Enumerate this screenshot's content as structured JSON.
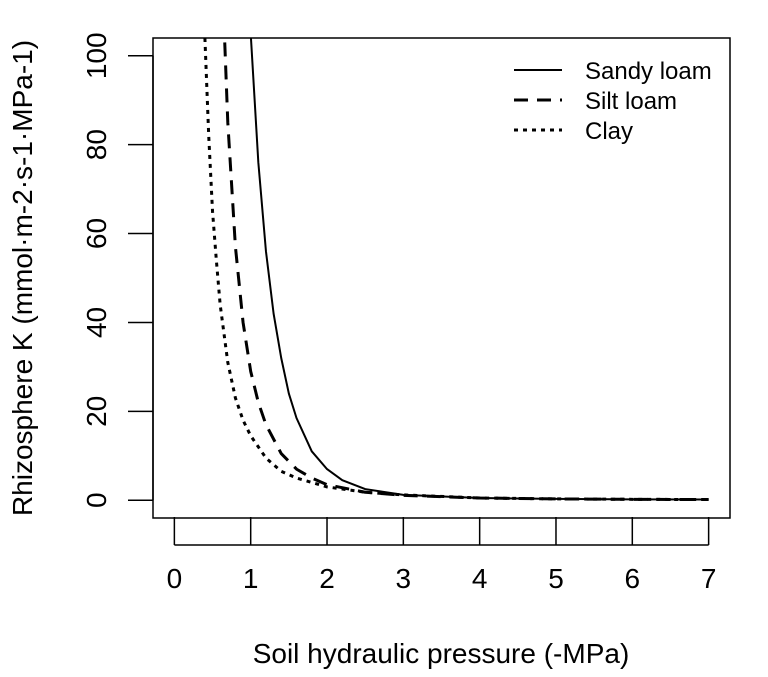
{
  "chart_data": {
    "type": "line",
    "title": "",
    "xlabel": "Soil hydraulic pressure (-MPa)",
    "ylabel": "Rhizosphere K (mmol·m-2·s-1·MPa-1)",
    "xlim": [
      -0.28,
      7.28
    ],
    "ylim": [
      -4,
      104
    ],
    "xticks": [
      0,
      1,
      2,
      3,
      4,
      5,
      6,
      7
    ],
    "yticks": [
      0,
      20,
      40,
      60,
      80,
      100
    ],
    "grid": false,
    "legend_position": "top-right",
    "series": [
      {
        "name": "Sandy loam",
        "line_style": "solid",
        "color": "#000000",
        "x": [
          1.0,
          1.1,
          1.2,
          1.3,
          1.4,
          1.5,
          1.6,
          1.8,
          2.0,
          2.2,
          2.5,
          3.0,
          4.0,
          5.0,
          6.0,
          7.0
        ],
        "y": [
          105,
          76,
          56,
          42,
          32,
          24,
          18.5,
          11,
          7,
          4.5,
          2.5,
          1.2,
          0.5,
          0.3,
          0.2,
          0.15
        ]
      },
      {
        "name": "Silt loam",
        "line_style": "dashed",
        "color": "#000000",
        "x": [
          0.66,
          0.7,
          0.8,
          0.9,
          1.0,
          1.1,
          1.2,
          1.4,
          1.6,
          1.8,
          2.0,
          2.5,
          3.0,
          4.0,
          5.0,
          6.0,
          7.0
        ],
        "y": [
          103,
          85,
          57,
          40,
          29,
          22,
          17,
          10.5,
          7,
          5,
          3.5,
          1.8,
          1.1,
          0.5,
          0.3,
          0.2,
          0.15
        ]
      },
      {
        "name": "Clay",
        "line_style": "dotted",
        "color": "#000000",
        "x": [
          0.4,
          0.45,
          0.5,
          0.55,
          0.6,
          0.7,
          0.8,
          0.9,
          1.0,
          1.2,
          1.4,
          1.6,
          2.0,
          2.5,
          3.0,
          4.0,
          5.0,
          6.0,
          7.0
        ],
        "y": [
          104,
          82,
          65,
          54,
          44,
          31,
          23,
          18,
          14.5,
          9.5,
          6.5,
          5,
          3,
          1.8,
          1.2,
          0.5,
          0.3,
          0.2,
          0.15
        ]
      }
    ]
  }
}
